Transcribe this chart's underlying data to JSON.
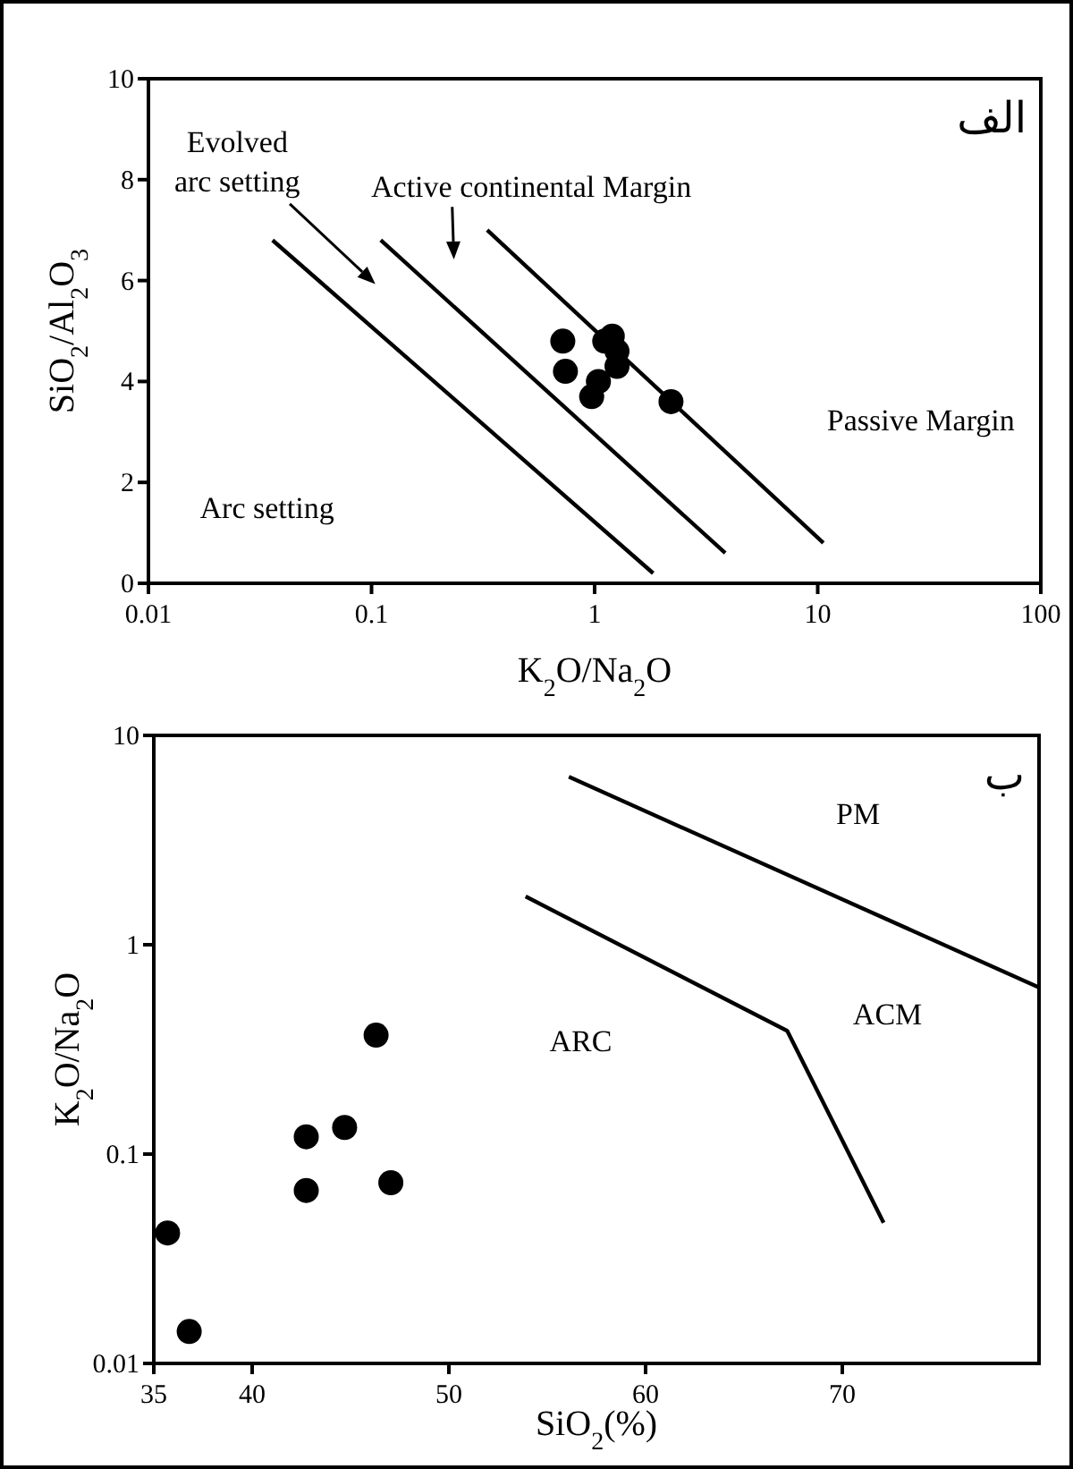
{
  "chart_data": [
    {
      "type": "scatter",
      "title": "الف",
      "xlabel": "K$_{2}$O/Na$_{2}$O",
      "ylabel": "SiO$_{2}$/Al$_{2}$O$_{3}$",
      "log": "x",
      "xlim": [
        0.01,
        100
      ],
      "ylim": [
        0,
        10
      ],
      "xticks": [
        0.01,
        0.1,
        1,
        10,
        100
      ],
      "yticks": [
        0,
        2,
        4,
        6,
        8,
        10
      ],
      "series": [
        {
          "type": "scatter",
          "marker": "circle",
          "color": "#000000",
          "x": [
            0.72,
            0.74,
            1.11,
            1.2,
            1.26,
            1.26,
            1.04,
            0.97,
            2.2
          ],
          "values": [
            4.8,
            4.2,
            4.8,
            4.9,
            4.6,
            4.3,
            4.0,
            3.7,
            3.6
          ]
        },
        {
          "type": "line",
          "color": "#000000",
          "x": [
            0.036,
            1.83
          ],
          "values": [
            6.8,
            0.2
          ]
        },
        {
          "type": "line",
          "color": "#000000",
          "x": [
            0.11,
            3.85
          ],
          "values": [
            6.8,
            0.6
          ]
        },
        {
          "type": "line",
          "color": "#000000",
          "x": [
            0.33,
            10.6
          ],
          "values": [
            7.0,
            0.8
          ]
        }
      ],
      "annotations": [
        "Evolved arc setting",
        "Active continental Margin",
        "Passive Margin",
        "Arc setting"
      ]
    },
    {
      "type": "scatter",
      "title": "ب",
      "xlabel": "SiO$_{2}$(%)",
      "ylabel": "K$_{2}$O/Na$_{2}$O",
      "log": "y",
      "xlim": [
        35,
        80
      ],
      "ylim": [
        0.01,
        10
      ],
      "xticks": [
        35,
        40,
        50,
        60,
        70
      ],
      "yticks": [
        0.01,
        0.1,
        1,
        10
      ],
      "series": [
        {
          "type": "scatter",
          "marker": "circle",
          "color": "#000000",
          "x": [
            35.7,
            36.8,
            42.75,
            42.75,
            44.7,
            46.3,
            47.05
          ],
          "values": [
            0.042,
            0.0142,
            0.121,
            0.067,
            0.134,
            0.37,
            0.073
          ]
        },
        {
          "type": "line",
          "color": "#000000",
          "x": [
            56.1,
            80
          ],
          "values": [
            6.34,
            0.625
          ]
        },
        {
          "type": "line",
          "color": "#000000",
          "x": [
            53.9,
            67.2,
            72.1
          ],
          "values": [
            1.7,
            0.388,
            0.047
          ]
        }
      ],
      "annotations": [
        "PM",
        "ACM",
        "ARC"
      ]
    }
  ]
}
